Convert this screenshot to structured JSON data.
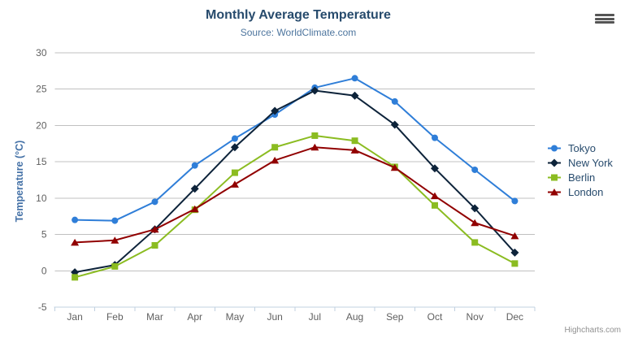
{
  "chart_data": {
    "type": "line",
    "title": "Monthly Average Temperature",
    "subtitle": "Source: WorldClimate.com",
    "categories": [
      "Jan",
      "Feb",
      "Mar",
      "Apr",
      "May",
      "Jun",
      "Jul",
      "Aug",
      "Sep",
      "Oct",
      "Nov",
      "Dec"
    ],
    "xlabel": "",
    "ylabel": "Temperature (°C)",
    "ylim": [
      -5,
      30
    ],
    "yticks": [
      -5,
      0,
      5,
      10,
      15,
      20,
      25,
      30
    ],
    "grid": true,
    "legend_position": "right",
    "series": [
      {
        "name": "Tokyo",
        "color": "#2f7ed8",
        "marker": "circle",
        "values": [
          7.0,
          6.9,
          9.5,
          14.5,
          18.2,
          21.5,
          25.2,
          26.5,
          23.3,
          18.3,
          13.9,
          9.6
        ]
      },
      {
        "name": "New York",
        "color": "#0d233a",
        "marker": "diamond",
        "values": [
          -0.2,
          0.8,
          5.7,
          11.3,
          17.0,
          22.0,
          24.8,
          24.1,
          20.1,
          14.1,
          8.6,
          2.5
        ]
      },
      {
        "name": "Berlin",
        "color": "#8bbc21",
        "marker": "square",
        "values": [
          -0.9,
          0.6,
          3.5,
          8.4,
          13.5,
          17.0,
          18.6,
          17.9,
          14.3,
          9.0,
          3.9,
          1.0
        ]
      },
      {
        "name": "London",
        "color": "#910000",
        "marker": "triangle",
        "values": [
          3.9,
          4.2,
          5.7,
          8.5,
          11.9,
          15.2,
          17.0,
          16.6,
          14.2,
          10.3,
          6.6,
          4.8
        ]
      }
    ],
    "style_colors": {
      "gridline": "#C0C0C0",
      "axis_line": "#C0D0E0",
      "tick_label": "#606060",
      "title": "#274b6d",
      "subtitle": "#4d759e",
      "y_axis_title": "#4572a7"
    }
  },
  "credits": {
    "label": "Highcharts.com"
  }
}
